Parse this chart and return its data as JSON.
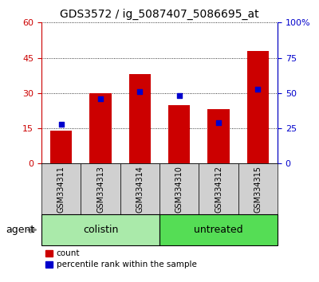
{
  "title": "GDS3572 / ig_5087407_5086695_at",
  "samples": [
    "GSM334311",
    "GSM334313",
    "GSM334314",
    "GSM334310",
    "GSM334312",
    "GSM334315"
  ],
  "counts": [
    14,
    30,
    38,
    25,
    23,
    48
  ],
  "percentiles": [
    28,
    46,
    51,
    48,
    29,
    53
  ],
  "groups": [
    {
      "label": "colistin",
      "indices": [
        0,
        1,
        2
      ],
      "color": "#90ee90"
    },
    {
      "label": "untreated",
      "indices": [
        3,
        4,
        5
      ],
      "color": "#44cc44"
    }
  ],
  "left_ylim": [
    0,
    60
  ],
  "left_yticks": [
    0,
    15,
    30,
    45,
    60
  ],
  "right_ylim": [
    0,
    100
  ],
  "right_yticks": [
    0,
    25,
    50,
    75,
    100
  ],
  "bar_color": "#cc0000",
  "dot_color": "#0000cc",
  "agent_label": "agent",
  "legend_count": "count",
  "legend_percentile": "percentile rank within the sample",
  "title_fontsize": 10,
  "axis_label_color_left": "#cc0000",
  "axis_label_color_right": "#0000cc",
  "bar_width": 0.55,
  "sample_box_color": "#d0d0d0",
  "colistin_color": "#aaeaaa",
  "untreated_color": "#55dd55"
}
